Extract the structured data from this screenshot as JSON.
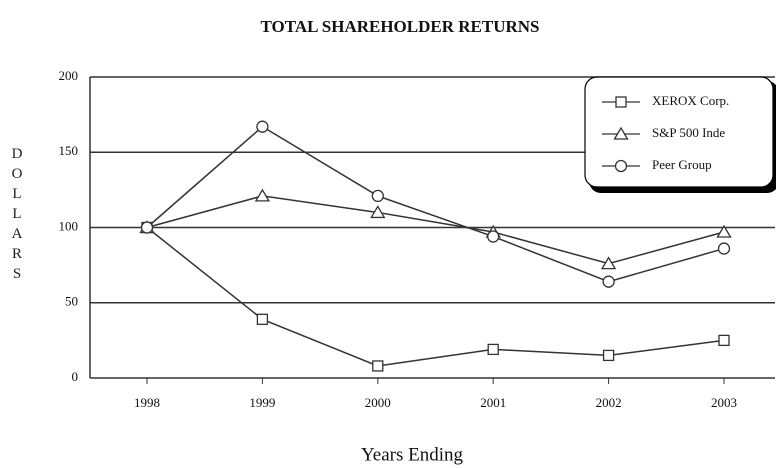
{
  "chart_data": {
    "type": "line",
    "title": "TOTAL SHAREHOLDER RETURNS",
    "x_label": "Years Ending",
    "y_label": "DOLLARS",
    "categories": [
      "1998",
      "1999",
      "2000",
      "2001",
      "2002",
      "2003"
    ],
    "series": [
      {
        "name": "XEROX Corp.",
        "marker": "square",
        "color": "#333333",
        "values": [
          100,
          39,
          8,
          19,
          15,
          25
        ]
      },
      {
        "name": "S&P 500 Inde",
        "marker": "triangle",
        "color": "#333333",
        "values": [
          100,
          121,
          110,
          97,
          76,
          97
        ]
      },
      {
        "name": "Peer Group",
        "marker": "circle",
        "color": "#333333",
        "values": [
          100,
          167,
          121,
          94,
          64,
          86
        ]
      }
    ],
    "ylim": [
      0,
      200
    ],
    "yticks": [
      0,
      50,
      100,
      150,
      200
    ],
    "grid": true,
    "legend": "top-right"
  }
}
